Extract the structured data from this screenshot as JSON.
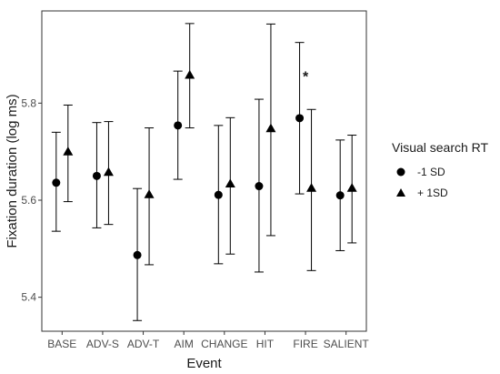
{
  "chart_data": {
    "type": "scatter",
    "xlabel": "Event",
    "ylabel": "Fixation duration (log ms)",
    "categories": [
      "BASE",
      "ADV-S",
      "ADV-T",
      "AIM",
      "CHANGE",
      "HIT",
      "FIRE",
      "SALIENT"
    ],
    "ylim": [
      5.33,
      5.99
    ],
    "yticks": [
      "5.4",
      "5.6",
      "5.8"
    ],
    "ytick_values": [
      5.4,
      5.6,
      5.8
    ],
    "legend": {
      "title": "Visual search RT",
      "placement": "right"
    },
    "series": [
      {
        "name": "-1 SD",
        "marker": "circle",
        "values": [
          5.636,
          5.65,
          5.487,
          5.754,
          5.611,
          5.629,
          5.769,
          5.61
        ],
        "lower": [
          5.536,
          5.543,
          5.352,
          5.643,
          5.469,
          5.452,
          5.613,
          5.496
        ],
        "upper": [
          5.74,
          5.76,
          5.624,
          5.866,
          5.754,
          5.808,
          5.925,
          5.724
        ]
      },
      {
        "name": "+ 1SD",
        "marker": "triangle",
        "values": [
          5.7,
          5.658,
          5.612,
          5.858,
          5.634,
          5.748,
          5.625,
          5.625
        ],
        "lower": [
          5.597,
          5.55,
          5.467,
          5.749,
          5.489,
          5.527,
          5.455,
          5.512
        ],
        "upper": [
          5.796,
          5.762,
          5.749,
          5.964,
          5.77,
          5.963,
          5.787,
          5.734
        ]
      }
    ],
    "annotations": [
      {
        "text": "*",
        "category": "FIRE",
        "y": 5.86
      }
    ],
    "grid": false
  }
}
